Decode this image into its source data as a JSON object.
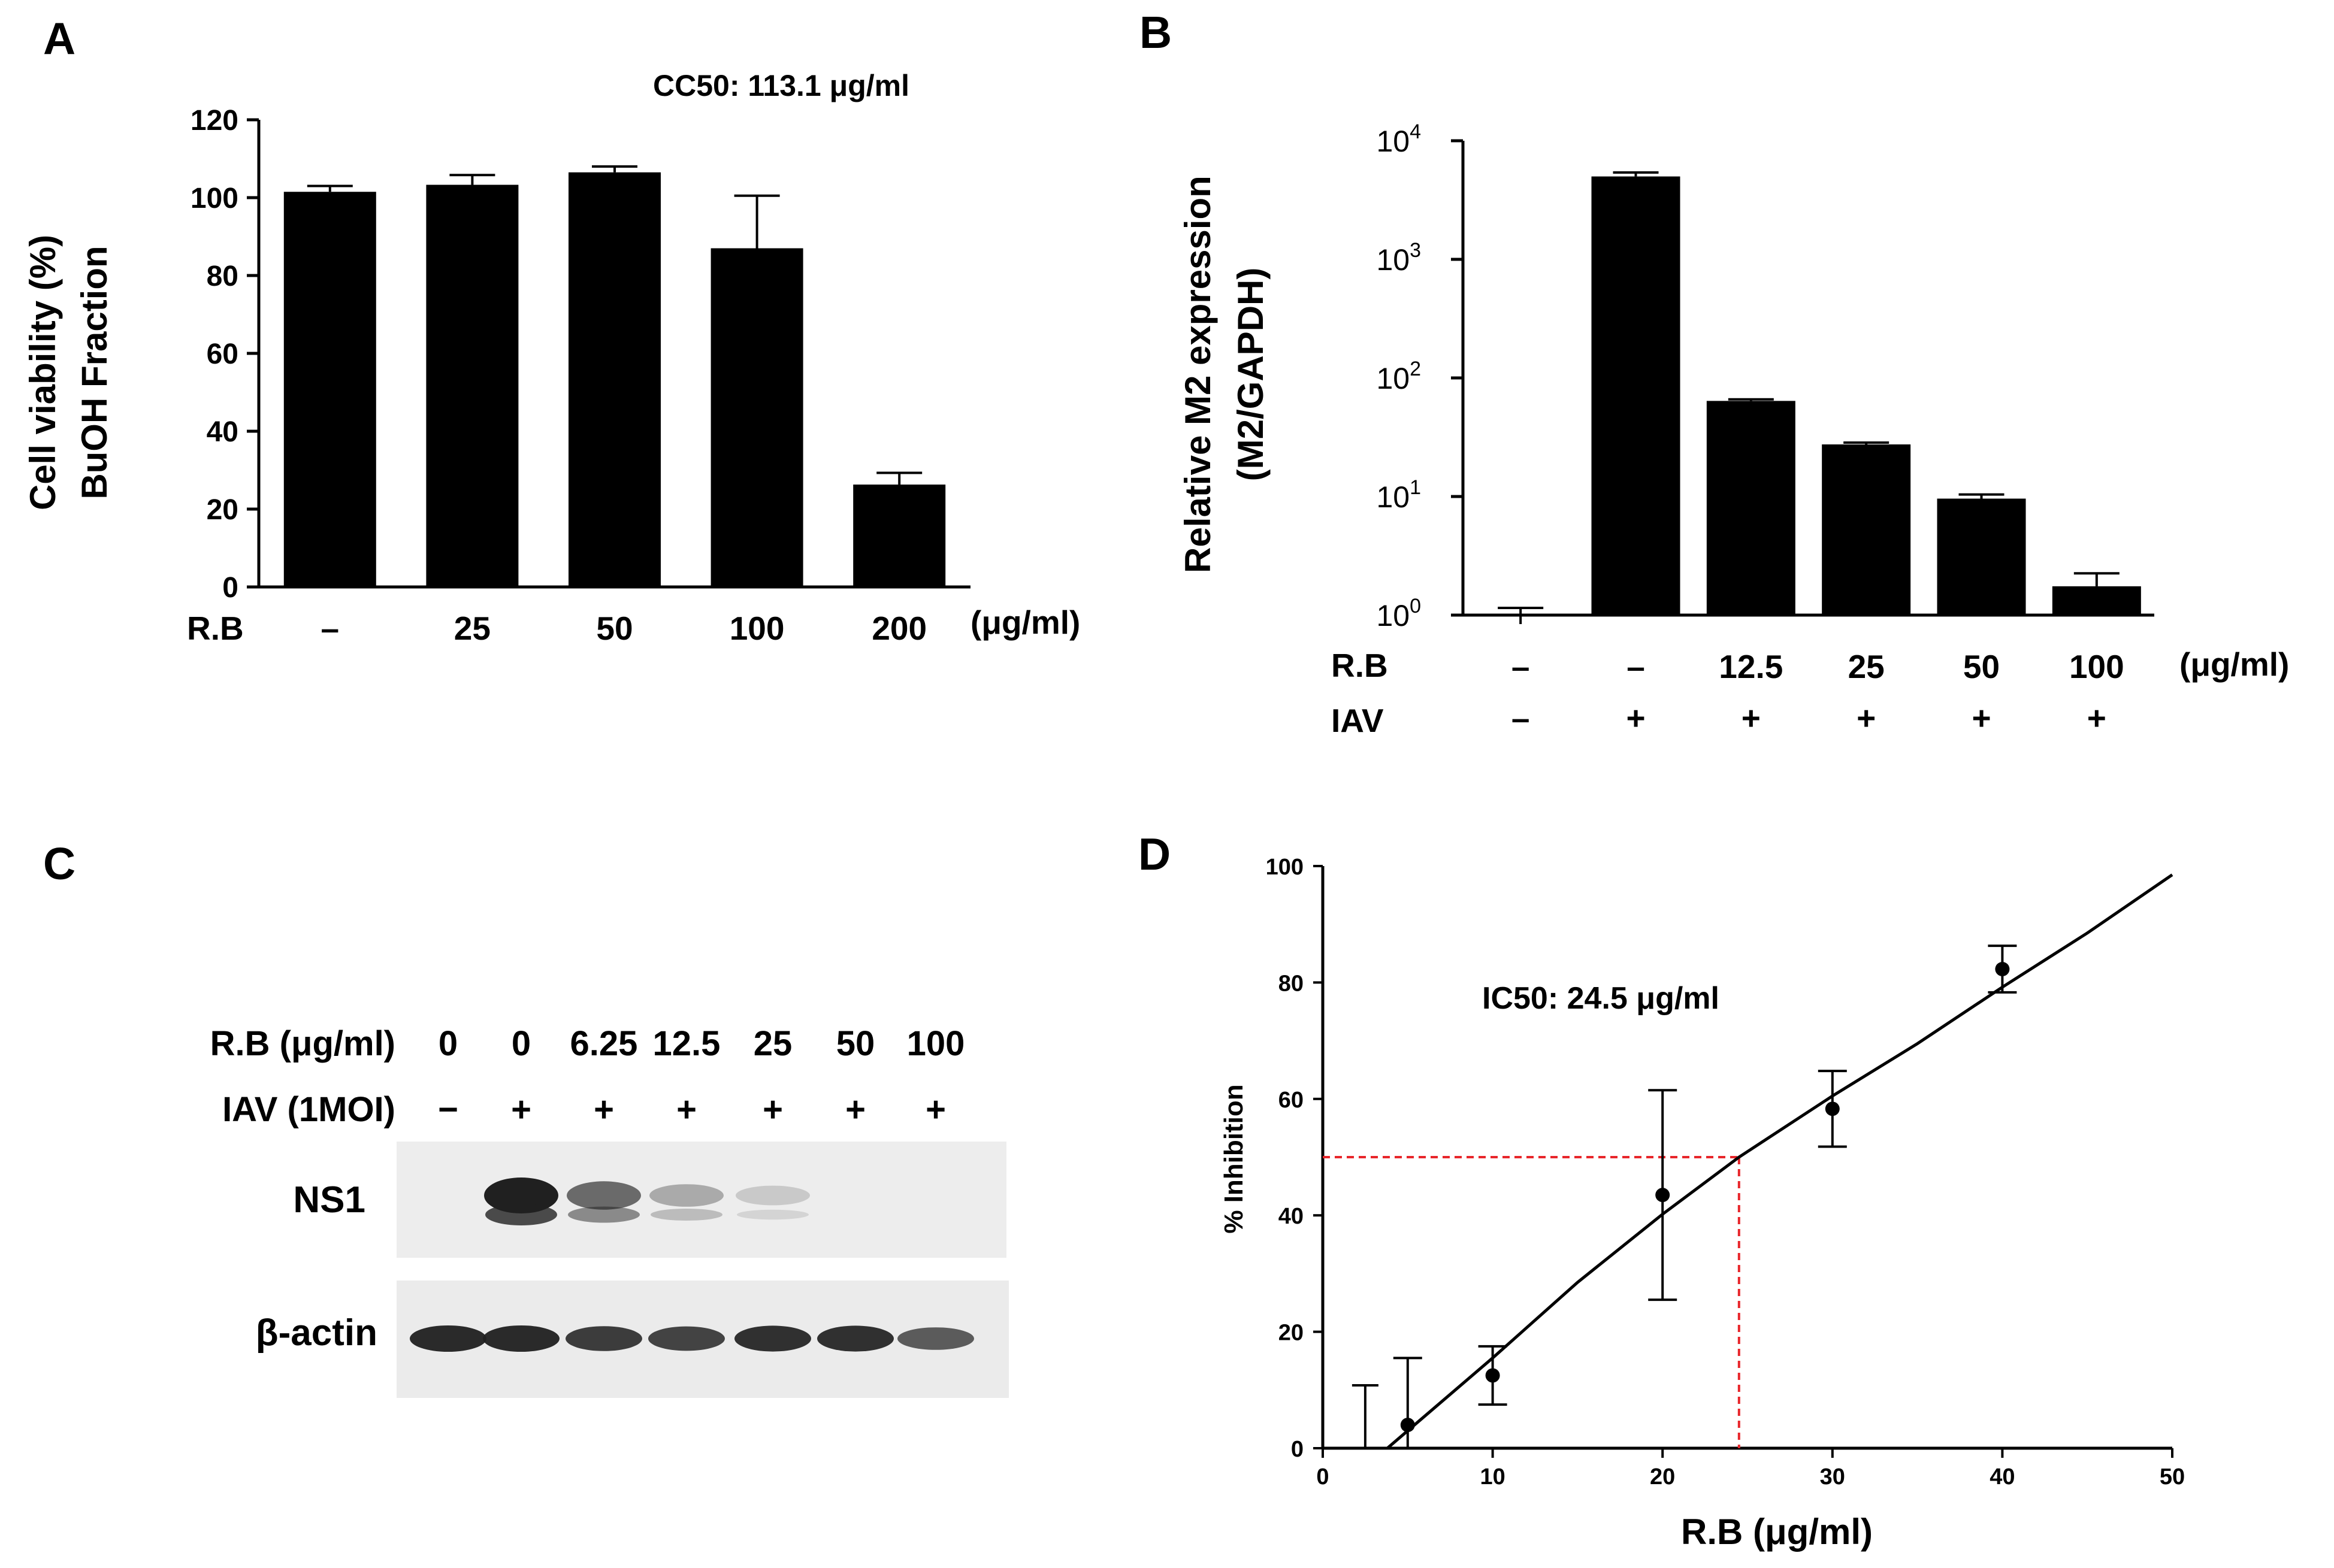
{
  "colors": {
    "ink": "#000000",
    "bar": "#000000",
    "guide": "#e8262b",
    "blot_bg": "#ececec",
    "band": "#202020"
  },
  "chart_data": [
    {
      "id": "A",
      "type": "bar",
      "panel_label": "A",
      "annotation": "CC50: 113.1 μg/ml",
      "ylabel_line1": "Cell viability (%)",
      "ylabel_line2": "BuOH Fraction",
      "row_label": "R.B",
      "unit_label": "(μg/ml)",
      "categories": [
        "–",
        "25",
        "50",
        "100",
        "200"
      ],
      "values": [
        101.5,
        103.3,
        106.5,
        87.0,
        26.3
      ],
      "errors": [
        1.5,
        2.5,
        1.5,
        13.5,
        3.0
      ],
      "ylim": [
        0,
        120
      ],
      "yticks": [
        0,
        20,
        40,
        60,
        80,
        100,
        120
      ],
      "ytick_labels": [
        "0",
        "20",
        "40",
        "60",
        "80",
        "100",
        "120"
      ]
    },
    {
      "id": "B",
      "type": "bar",
      "panel_label": "B",
      "yscale": "log",
      "ylabel_line1": "Relative M2 expression",
      "ylabel_line2": "(M2/GAPDH)",
      "row1_label": "R.B",
      "row2_label": "IAV",
      "unit_label": "(μg/ml)",
      "categories": [
        "–",
        "–",
        "12.5",
        "25",
        "50",
        "100"
      ],
      "iav": [
        "–",
        "+",
        "+",
        "+",
        "+",
        "+"
      ],
      "values": [
        1.0,
        5000,
        64,
        27.5,
        9.6,
        1.75
      ],
      "errors_upper": [
        1.15,
        5400,
        66,
        28.5,
        10.4,
        2.25
      ],
      "ylim": [
        1,
        10000
      ],
      "yticks": [
        1,
        10,
        100,
        1000,
        10000
      ],
      "ytick_base": "10",
      "ytick_exponents": [
        "0",
        "1",
        "2",
        "3",
        "4"
      ]
    },
    {
      "id": "D",
      "type": "scatter",
      "panel_label": "D",
      "annotation": "IC50: 24.5 μg/ml",
      "xlabel": "R.B (μg/ml)",
      "ylabel": "% Inhibition",
      "x": [
        5,
        10,
        20,
        30,
        40
      ],
      "y": [
        4,
        12.5,
        43.5,
        58.3,
        82.3
      ],
      "err": [
        11.5,
        5,
        18,
        6.5,
        4
      ],
      "extra_errorbar": {
        "x": 2.5,
        "low": 0,
        "high": 10.8
      },
      "fit_curve": {
        "x": [
          3.8,
          5,
          10,
          15,
          20,
          24.5,
          30,
          35,
          40,
          45,
          50
        ],
        "y": [
          0,
          3,
          15.5,
          28.5,
          40.2,
          50,
          60.5,
          69.5,
          79.2,
          88.5,
          98.5
        ]
      },
      "ic50": {
        "x": 24.5,
        "y": 50
      },
      "xlim": [
        0,
        50
      ],
      "ylim": [
        0,
        100
      ],
      "xticks": [
        0,
        10,
        20,
        30,
        40,
        50
      ],
      "xtick_labels": [
        "0",
        "10",
        "20",
        "30",
        "40",
        "50"
      ],
      "yticks": [
        0,
        20,
        40,
        60,
        80,
        100
      ],
      "ytick_labels": [
        "0",
        "20",
        "40",
        "60",
        "80",
        "100"
      ]
    }
  ],
  "blot": {
    "panel_label": "C",
    "row1_label": "R.B (μg/ml)",
    "row2_label": "IAV (1MOI)",
    "doses": [
      "0",
      "0",
      "6.25",
      "12.5",
      "25",
      "50",
      "100"
    ],
    "iav": [
      "−",
      "+",
      "+",
      "+",
      "+",
      "+",
      "+"
    ],
    "band_labels": [
      "NS1",
      "β-actin"
    ],
    "ns1_intensity": [
      0,
      1.0,
      0.55,
      0.2,
      0.03,
      0,
      0
    ],
    "actin_intensity": [
      1.0,
      1.0,
      0.85,
      0.8,
      0.95,
      0.95,
      0.6
    ]
  }
}
